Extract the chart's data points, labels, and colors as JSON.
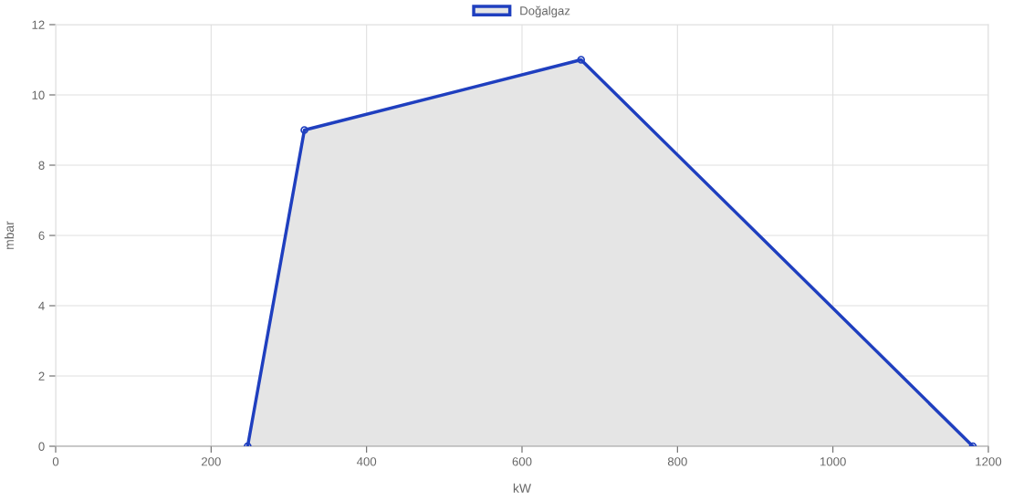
{
  "chart_data": {
    "type": "area",
    "xlabel": "kW",
    "ylabel": "mbar",
    "x": [
      247,
      320,
      676,
      1180
    ],
    "series": [
      {
        "name": "Doğalgaz",
        "color": "#1f3fbf",
        "values": [
          0,
          9,
          11,
          0
        ]
      }
    ],
    "xlim": [
      0,
      1200
    ],
    "xticks": [
      0,
      200,
      400,
      600,
      800,
      1000,
      1200
    ],
    "ylim": [
      0,
      12
    ],
    "yticks": [
      0,
      2,
      4,
      6,
      8,
      10,
      12
    ],
    "grid": true,
    "legend": "top",
    "marker": "circle",
    "line_style": "solid"
  }
}
